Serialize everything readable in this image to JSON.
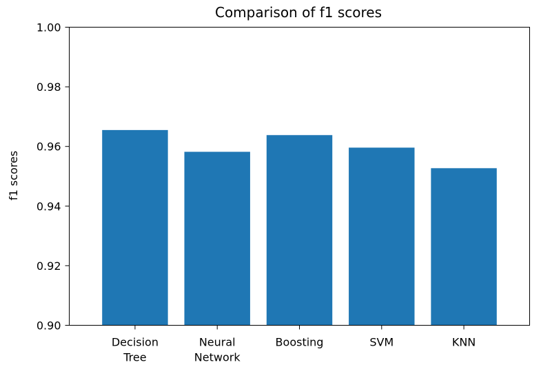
{
  "chart_data": {
    "type": "bar",
    "title": "Comparison of f1 scores",
    "xlabel": "",
    "ylabel": "f1 scores",
    "categories": [
      [
        "Decision",
        "Tree"
      ],
      [
        "Neural",
        "Network"
      ],
      [
        "Boosting"
      ],
      [
        "SVM"
      ],
      [
        "KNN"
      ]
    ],
    "values": [
      0.9655,
      0.9582,
      0.9638,
      0.9596,
      0.9527
    ],
    "ylim": [
      0.9,
      1.0
    ],
    "yticks": [
      "0.90",
      "0.92",
      "0.94",
      "0.96",
      "0.98",
      "1.00"
    ],
    "bar_color": "#1f77b4",
    "grid": false
  }
}
